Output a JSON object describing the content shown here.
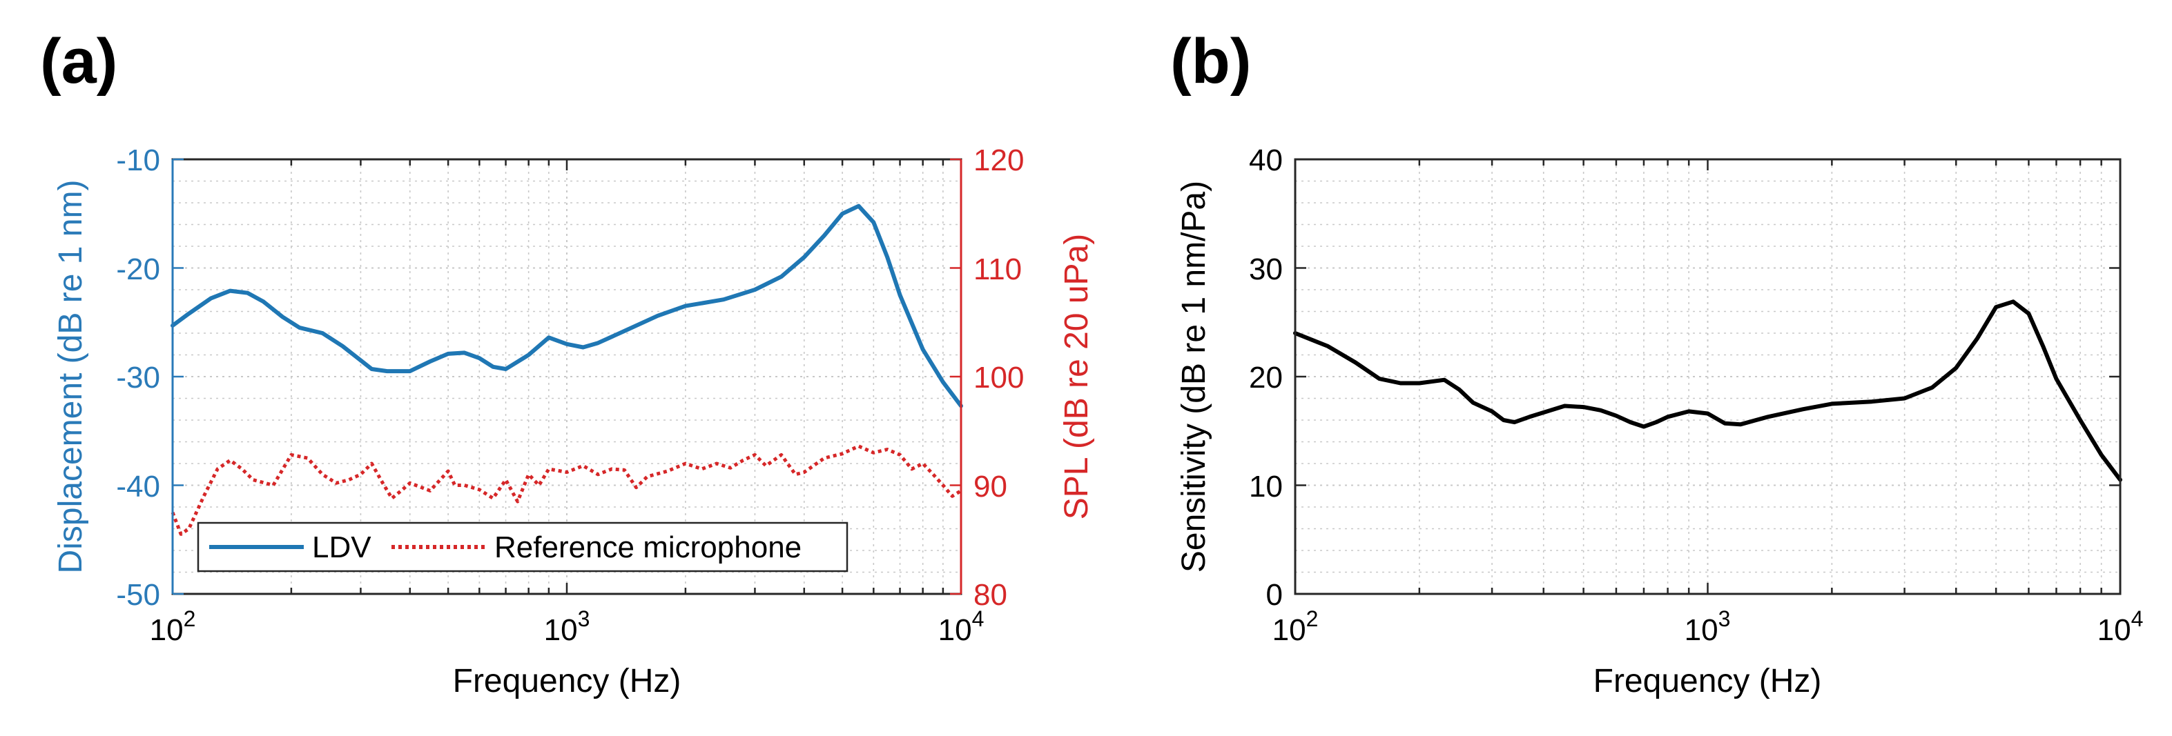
{
  "panels": {
    "a": {
      "label": "(a)"
    },
    "b": {
      "label": "(b)"
    }
  },
  "chart_data": [
    {
      "id": "a",
      "type": "line",
      "xscale": "log",
      "xlim": [
        100,
        10000
      ],
      "xlabel": "Frequency (Hz)",
      "xticks": [
        100,
        1000,
        10000
      ],
      "xtick_labels": [
        {
          "base": "10",
          "exp": "2"
        },
        {
          "base": "10",
          "exp": "3"
        },
        {
          "base": "10",
          "exp": "4"
        }
      ],
      "ylabel_left": "Displacement (dB re 1 nm)",
      "ylim_left": [
        -50,
        -10
      ],
      "yticks_left": [
        "-10",
        "-20",
        "-30",
        "-40",
        "-50"
      ],
      "ylabel_right": "SPL (dB re 20 uPa)",
      "ylim_right": [
        80,
        120
      ],
      "yticks_right": [
        "120",
        "110",
        "100",
        "90",
        "80"
      ],
      "grid": true,
      "legend_position": "bottom-left",
      "colors": {
        "left_axis": "#2a7ab8",
        "right_axis": "#d62728"
      },
      "series": [
        {
          "name": "LDV",
          "axis": "left",
          "color": "#1f77b4",
          "style": "solid",
          "x": [
            100,
            110,
            125,
            140,
            155,
            170,
            190,
            210,
            240,
            270,
            300,
            320,
            350,
            400,
            450,
            500,
            550,
            600,
            650,
            700,
            800,
            900,
            1000,
            1100,
            1200,
            1400,
            1700,
            2000,
            2500,
            3000,
            3500,
            4000,
            4500,
            5000,
            5500,
            6000,
            6500,
            7000,
            8000,
            9000,
            10000
          ],
          "y": [
            -25.3,
            -24.2,
            -22.8,
            -22.1,
            -22.3,
            -23.1,
            -24.5,
            -25.5,
            -26.0,
            -27.2,
            -28.5,
            -29.3,
            -29.5,
            -29.5,
            -28.6,
            -27.9,
            -27.8,
            -28.3,
            -29.1,
            -29.3,
            -28.0,
            -26.4,
            -27.0,
            -27.3,
            -26.9,
            -25.8,
            -24.4,
            -23.5,
            -22.9,
            -22.0,
            -20.8,
            -19.0,
            -17.0,
            -15.0,
            -14.3,
            -15.8,
            -19.0,
            -22.5,
            -27.5,
            -30.5,
            -32.7
          ]
        },
        {
          "name": "Reference microphone",
          "axis": "right",
          "color": "#d62728",
          "style": "dotted",
          "x": [
            100,
            105,
            110,
            120,
            130,
            140,
            150,
            160,
            180,
            200,
            220,
            240,
            260,
            280,
            300,
            320,
            340,
            360,
            380,
            400,
            450,
            500,
            520,
            550,
            600,
            650,
            700,
            750,
            800,
            850,
            900,
            1000,
            1100,
            1200,
            1300,
            1400,
            1500,
            1600,
            1800,
            2000,
            2200,
            2400,
            2600,
            2800,
            3000,
            3200,
            3500,
            3800,
            4000,
            4500,
            5000,
            5500,
            6000,
            6500,
            7000,
            7500,
            8000,
            8500,
            9000,
            9500,
            10000
          ],
          "y": [
            87.5,
            85.5,
            86.0,
            89.0,
            91.5,
            92.3,
            91.5,
            90.5,
            90.0,
            92.8,
            92.5,
            91.0,
            90.2,
            90.5,
            91.0,
            92.0,
            90.3,
            88.8,
            89.5,
            90.2,
            89.5,
            91.3,
            90.0,
            90.0,
            89.6,
            88.8,
            90.5,
            88.5,
            91.0,
            90.0,
            91.5,
            91.2,
            91.8,
            91.0,
            91.5,
            91.4,
            89.8,
            90.8,
            91.3,
            92.0,
            91.5,
            92.0,
            91.6,
            92.3,
            92.8,
            91.8,
            92.8,
            91.0,
            91.2,
            92.5,
            92.9,
            93.6,
            93.0,
            93.3,
            92.8,
            91.5,
            92.0,
            91.0,
            90.0,
            89.0,
            89.5
          ]
        }
      ],
      "legend": [
        "LDV",
        "Reference microphone"
      ]
    },
    {
      "id": "b",
      "type": "line",
      "xscale": "log",
      "xlim": [
        100,
        10000
      ],
      "xlabel": "Frequency (Hz)",
      "xticks": [
        100,
        1000,
        10000
      ],
      "xtick_labels": [
        {
          "base": "10",
          "exp": "2"
        },
        {
          "base": "10",
          "exp": "3"
        },
        {
          "base": "10",
          "exp": "4"
        }
      ],
      "ylabel": "Sensitivity (dB re 1 nm/Pa)",
      "ylim": [
        0,
        40
      ],
      "yticks": [
        "40",
        "30",
        "20",
        "10",
        "0"
      ],
      "grid": true,
      "series": [
        {
          "name": "Sensitivity",
          "color": "#000000",
          "style": "solid",
          "x": [
            100,
            120,
            140,
            160,
            180,
            200,
            230,
            250,
            270,
            300,
            320,
            340,
            370,
            400,
            450,
            500,
            550,
            600,
            650,
            700,
            750,
            800,
            900,
            1000,
            1100,
            1200,
            1400,
            1700,
            2000,
            2500,
            3000,
            3500,
            4000,
            4500,
            5000,
            5500,
            6000,
            6500,
            7000,
            8000,
            9000,
            10000
          ],
          "y": [
            24.0,
            22.8,
            21.3,
            19.8,
            19.4,
            19.4,
            19.7,
            18.8,
            17.6,
            16.8,
            16.0,
            15.8,
            16.3,
            16.7,
            17.3,
            17.2,
            16.9,
            16.4,
            15.8,
            15.4,
            15.8,
            16.3,
            16.8,
            16.6,
            15.7,
            15.6,
            16.3,
            17.0,
            17.5,
            17.7,
            18.0,
            19.0,
            20.8,
            23.5,
            26.4,
            26.9,
            25.8,
            22.8,
            19.8,
            16.0,
            12.8,
            10.5
          ]
        }
      ]
    }
  ]
}
